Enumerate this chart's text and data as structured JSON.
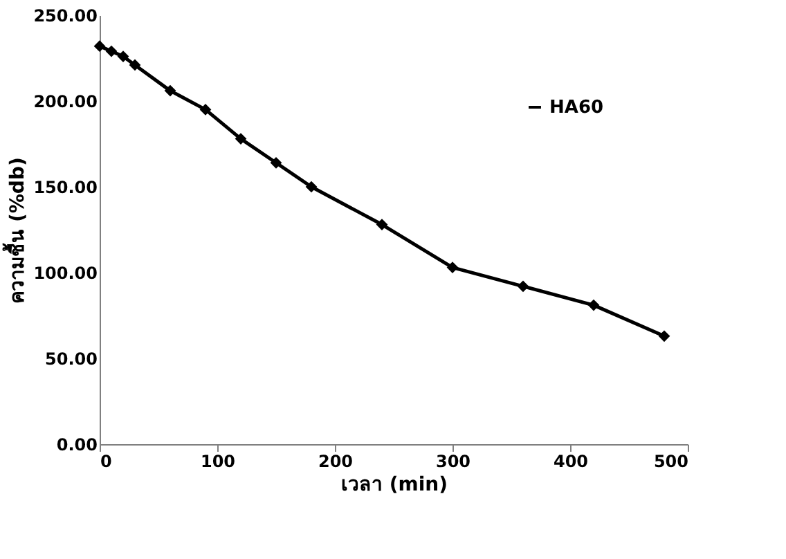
{
  "chart_data": {
    "type": "line",
    "xlabel": "เวลา (min)",
    "ylabel": "ความชื้น (%db)",
    "x": [
      0,
      10,
      20,
      30,
      60,
      90,
      120,
      150,
      180,
      240,
      300,
      360,
      420,
      480
    ],
    "series": [
      {
        "name": "HA60",
        "color": "#000000",
        "values": [
          232,
          229,
          226,
          221,
          206,
          195,
          178,
          164,
          150,
          128,
          103,
          92,
          81,
          63
        ]
      }
    ],
    "xlim": [
      0,
      500
    ],
    "xticks": [
      0,
      100,
      200,
      300,
      400,
      500
    ],
    "ylim": [
      0,
      250
    ],
    "yticks": [
      {
        "value": 0,
        "label": "0.00"
      },
      {
        "value": 50,
        "label": "50.00"
      },
      {
        "value": 100,
        "label": "100.00"
      },
      {
        "value": 150,
        "label": "150.00"
      },
      {
        "value": 200,
        "label": "200.00"
      },
      {
        "value": 250,
        "label": "250.00"
      }
    ],
    "grid": false,
    "legend": "top right",
    "marker": "diamond",
    "line_style": "solid"
  }
}
